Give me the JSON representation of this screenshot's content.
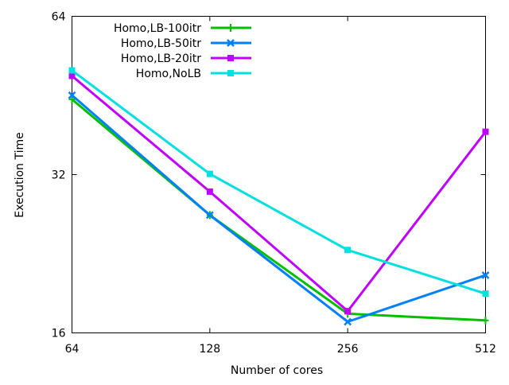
{
  "chart_data": {
    "type": "line",
    "title": "",
    "xlabel": "Number of cores",
    "ylabel": "Execution Time",
    "x": [
      64,
      128,
      256,
      512
    ],
    "x_ticks": [
      "64",
      "128",
      "256",
      "512"
    ],
    "x_scale": "log2",
    "y_scale": "log2",
    "ylim": [
      16,
      64
    ],
    "y_ticks": [
      "16",
      "32",
      "64"
    ],
    "grid": false,
    "legend_position": "top-left",
    "series": [
      {
        "name": "Homo,LB-100itr",
        "color": "#00c000",
        "marker": "plus",
        "values": [
          44.5,
          26.8,
          17.4,
          16.9
        ]
      },
      {
        "name": "Homo,LB-50itr",
        "color": "#0080ff",
        "marker": "x",
        "values": [
          45.3,
          26.8,
          16.8,
          20.6
        ]
      },
      {
        "name": "Homo,LB-20itr",
        "color": "#c000ff",
        "marker": "square",
        "values": [
          49.3,
          29.7,
          17.6,
          38.6
        ]
      },
      {
        "name": "Homo,NoLB",
        "color": "#00e0e0",
        "marker": "square",
        "values": [
          50.5,
          32.1,
          23.0,
          19.0
        ]
      }
    ]
  }
}
